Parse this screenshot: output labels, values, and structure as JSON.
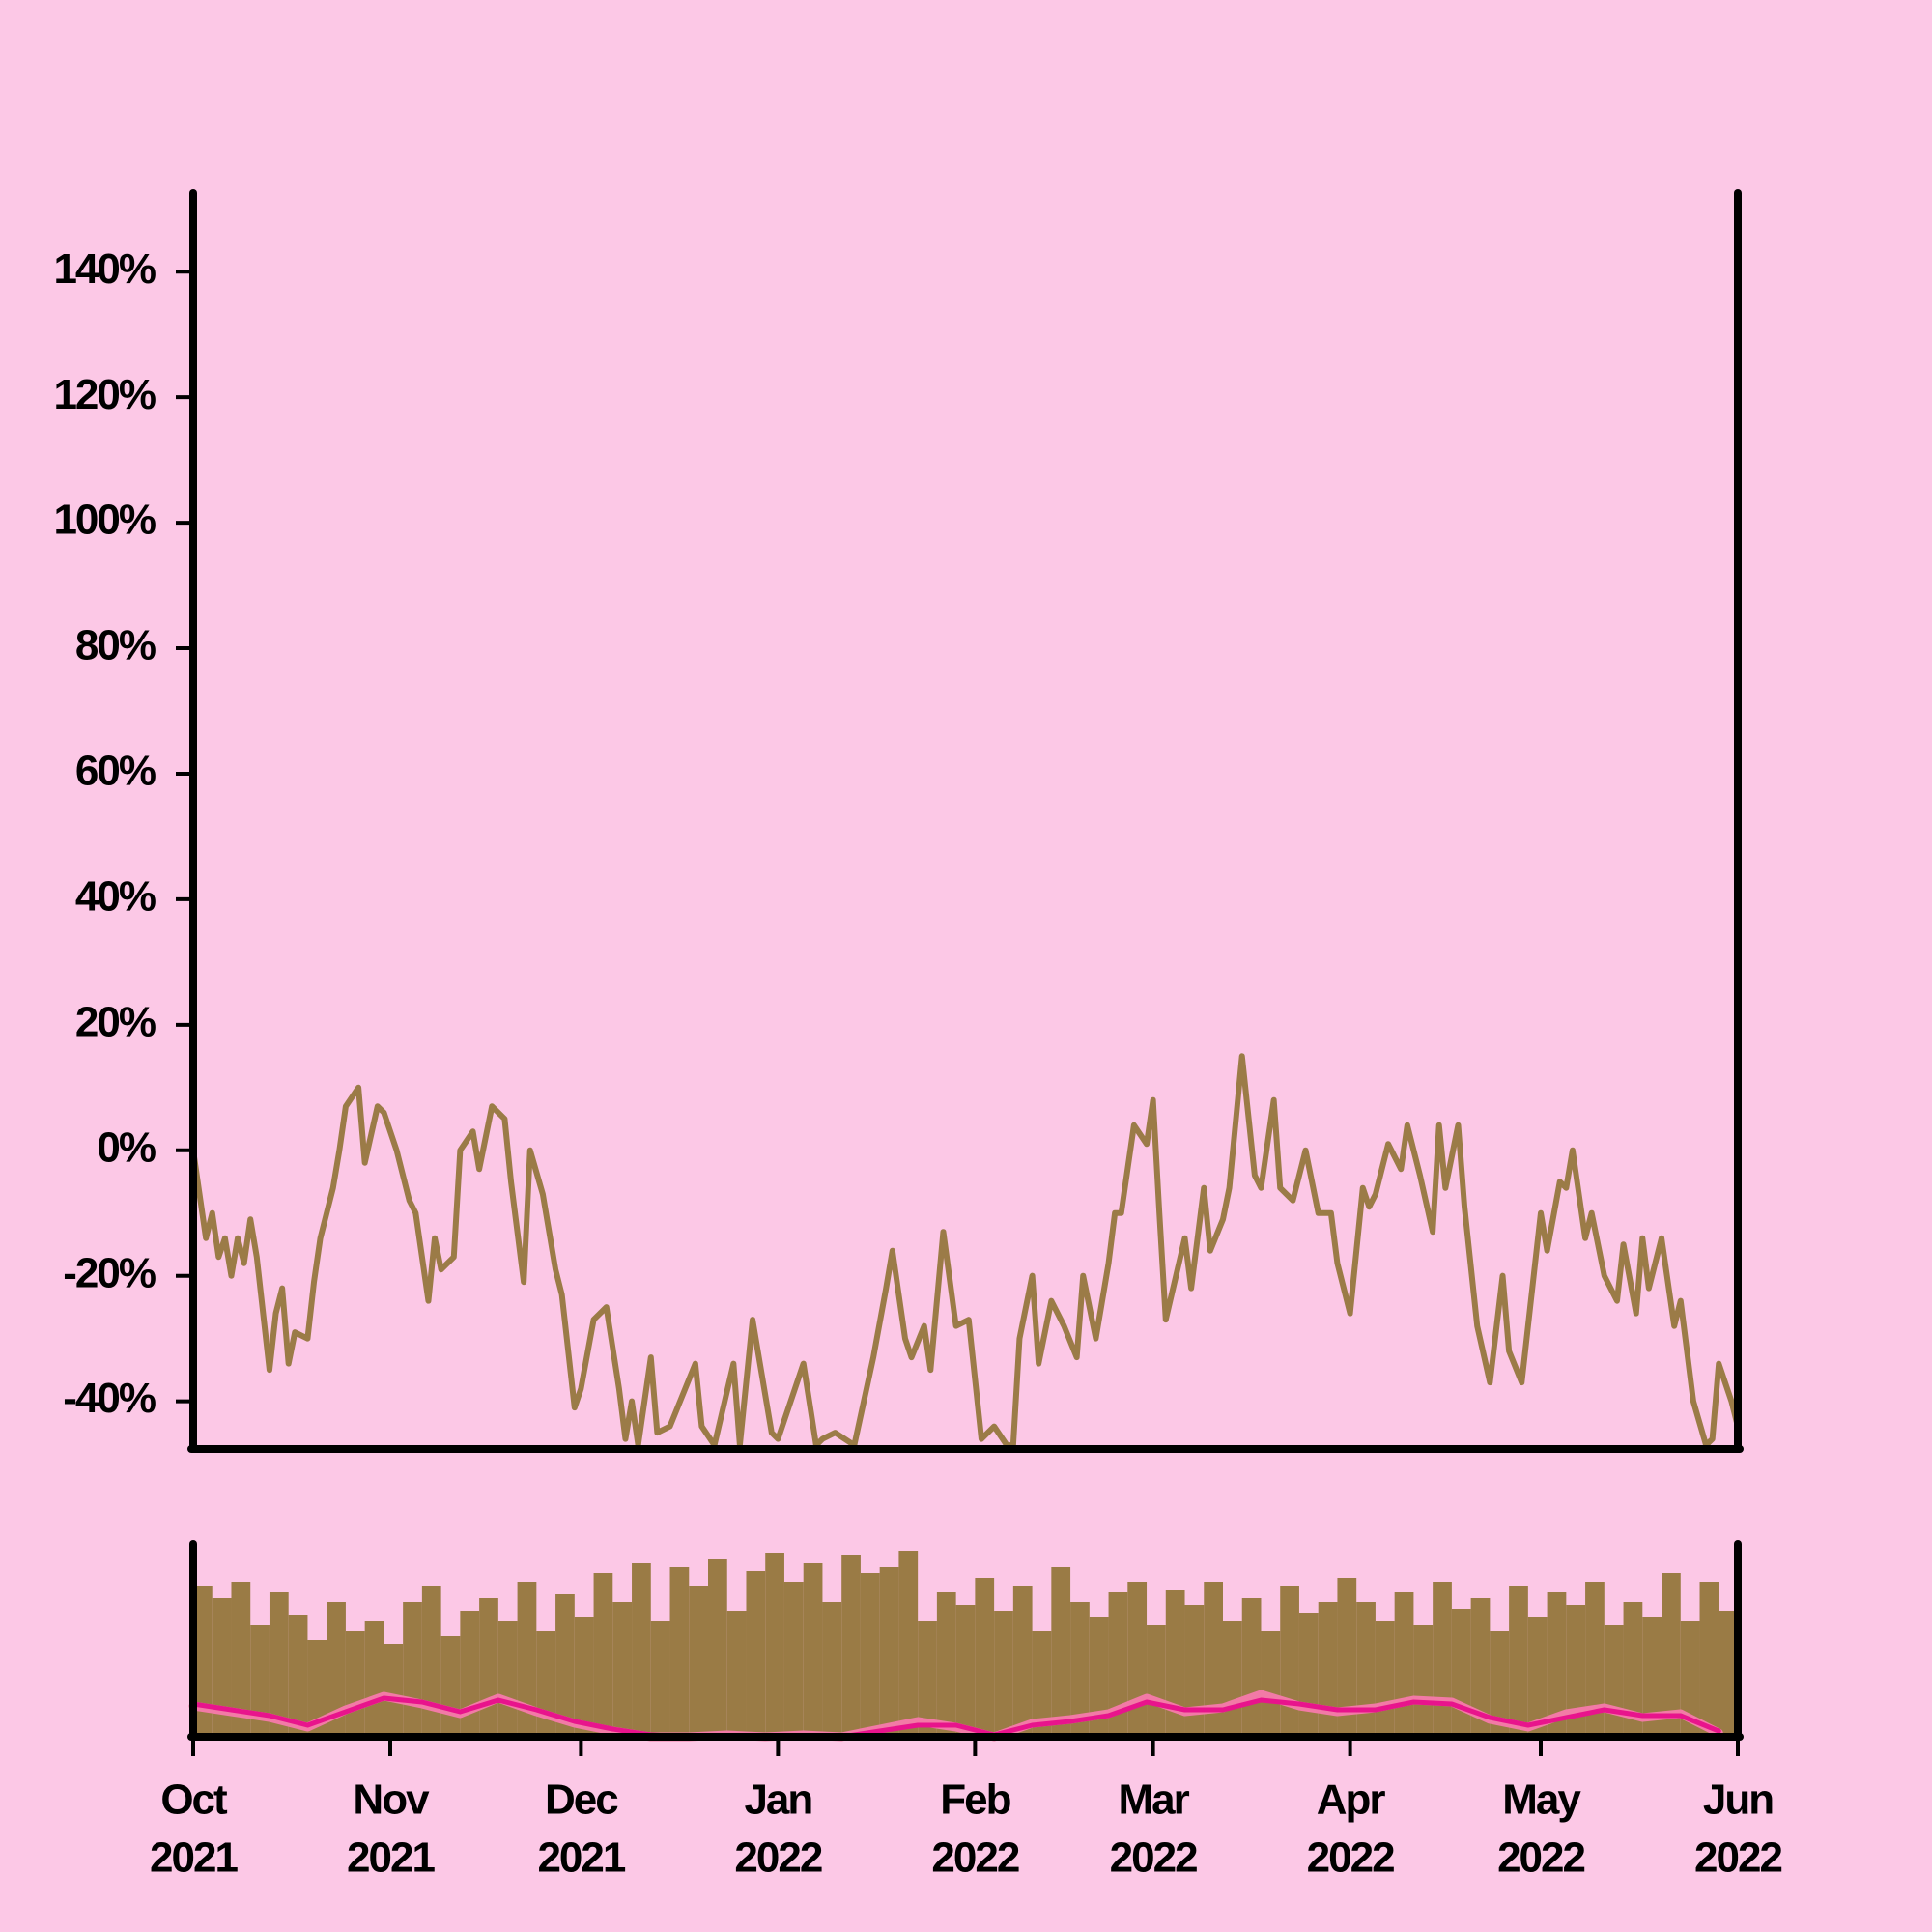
{
  "chart_data": [
    {
      "type": "line",
      "color": "#9b7b47",
      "x": [
        0,
        2,
        3,
        4,
        5,
        6,
        7,
        8,
        9,
        10,
        12,
        13,
        14,
        15,
        16,
        18,
        19,
        20,
        22,
        23,
        24,
        26,
        27,
        29,
        30,
        32,
        34,
        35,
        37,
        38,
        39,
        41,
        42,
        44,
        45,
        47,
        49,
        50,
        52,
        53,
        55,
        57,
        58,
        60,
        61,
        63,
        65,
        67,
        68,
        69,
        70,
        72,
        73,
        75,
        79,
        80,
        82,
        85,
        86,
        88,
        91,
        92,
        94,
        96,
        98,
        99,
        101,
        104,
        107,
        109,
        110,
        112,
        113,
        115,
        116,
        118,
        120,
        122,
        124,
        126,
        128,
        129,
        130,
        132,
        133,
        135,
        137,
        139,
        140,
        142,
        144,
        145,
        146,
        148,
        150,
        151,
        152,
        153,
        156,
        157,
        159,
        160,
        162,
        163,
        165,
        167,
        168,
        170,
        171,
        173,
        175,
        177,
        179,
        180,
        182,
        184,
        185,
        186,
        188,
        190,
        191,
        193,
        195,
        196,
        197,
        199,
        200,
        202,
        204,
        206,
        207,
        209,
        212,
        213,
        215,
        216,
        217,
        219,
        220,
        222,
        224,
        225,
        227,
        228,
        229,
        231,
        233,
        234,
        236,
        238,
        239,
        240,
        242,
        243
      ],
      "values": [
        0,
        -14,
        -10,
        -17,
        -14,
        -20,
        -14,
        -18,
        -11,
        -17,
        -35,
        -26,
        -22,
        -34,
        -29,
        -30,
        -21,
        -14,
        -6,
        0,
        7,
        10,
        -2,
        7,
        6,
        0,
        -8,
        -10,
        -24,
        -14,
        -19,
        -17,
        0,
        3,
        -3,
        7,
        5,
        -5,
        -21,
        0,
        -7,
        -19,
        -23,
        -41,
        -38,
        -27,
        -25,
        -38,
        -46,
        -40,
        -47,
        -33,
        -45,
        -44,
        -34,
        -44,
        -47,
        -34,
        -47,
        -27,
        -45,
        -46,
        -40,
        -34,
        -47,
        -46,
        -45,
        -47,
        -33,
        -22,
        -16,
        -30,
        -33,
        -28,
        -35,
        -13,
        -28,
        -27,
        -46,
        -44,
        -47,
        -47,
        -30,
        -20,
        -34,
        -24,
        -28,
        -33,
        -20,
        -30,
        -18,
        -10,
        -10,
        4,
        1,
        8,
        -10,
        -27,
        -14,
        -22,
        -6,
        -16,
        -11,
        -6,
        15,
        -4,
        -6,
        8,
        -6,
        -8,
        0,
        -10,
        -10,
        -18,
        -26,
        -6,
        -9,
        -7,
        1,
        -3,
        4,
        -4,
        -13,
        4,
        -6,
        4,
        -9,
        -28,
        -37,
        -20,
        -32,
        -37,
        -10,
        -16,
        -5,
        -6,
        0,
        -14,
        -10,
        -20,
        -24,
        -15,
        -26,
        -14,
        -22,
        -14,
        -28,
        -24,
        -40,
        -47,
        -46,
        -34,
        -40,
        -44
      ],
      "xlim": [
        0,
        243
      ],
      "ylim": [
        -47.6,
        152.5
      ],
      "yticks": [
        {
          "value": -40,
          "label": "-40%"
        },
        {
          "value": -20,
          "label": "-20%"
        },
        {
          "value": 0,
          "label": "0%"
        },
        {
          "value": 20,
          "label": "20%"
        },
        {
          "value": 40,
          "label": "40%"
        },
        {
          "value": 60,
          "label": "60%"
        },
        {
          "value": 80,
          "label": "80%"
        },
        {
          "value": 100,
          "label": "100%"
        },
        {
          "value": 120,
          "label": "120%"
        },
        {
          "value": 140,
          "label": "140%"
        }
      ]
    },
    {
      "type": "bar",
      "color": "#9a7b45",
      "x": [
        0,
        3,
        6,
        9,
        12,
        15,
        18,
        21,
        24,
        27,
        30,
        33,
        36,
        39,
        42,
        45,
        48,
        51,
        54,
        57,
        60,
        63,
        66,
        69,
        72,
        75,
        78,
        81,
        84,
        87,
        90,
        93,
        96,
        99,
        102,
        105,
        108,
        111,
        114,
        117,
        120,
        123,
        126,
        129,
        132,
        135,
        138,
        141,
        144,
        147,
        150,
        153,
        156,
        159,
        162,
        165,
        168,
        171,
        174,
        177,
        180,
        183,
        186,
        189,
        192,
        195,
        198,
        201,
        204,
        207,
        210,
        213,
        216,
        219,
        222,
        225,
        228,
        231,
        234,
        237,
        240
      ],
      "values": [
        78,
        72,
        80,
        58,
        75,
        63,
        50,
        70,
        55,
        60,
        48,
        70,
        78,
        52,
        65,
        72,
        60,
        80,
        55,
        74,
        62,
        85,
        70,
        90,
        60,
        88,
        78,
        92,
        65,
        86,
        95,
        80,
        90,
        70,
        94,
        85,
        88,
        96,
        60,
        75,
        68,
        82,
        65,
        78,
        55,
        88,
        70,
        62,
        75,
        80,
        58,
        76,
        68,
        80,
        60,
        72,
        55,
        78,
        64,
        70,
        82,
        70,
        60,
        75,
        58,
        80,
        66,
        72,
        55,
        78,
        62,
        75,
        68,
        80,
        58,
        70,
        62,
        85,
        60,
        80,
        65
      ],
      "xlim": [
        0,
        243
      ],
      "ylim": [
        0,
        100
      ],
      "xticks": [
        {
          "value": 0,
          "label": [
            "Oct",
            "2021"
          ]
        },
        {
          "value": 31,
          "label": [
            "Nov",
            "2021"
          ]
        },
        {
          "value": 61,
          "label": [
            "Dec",
            "2021"
          ]
        },
        {
          "value": 92,
          "label": [
            "Jan",
            "2022"
          ]
        },
        {
          "value": 123,
          "label": [
            "Feb",
            "2022"
          ]
        },
        {
          "value": 151,
          "label": [
            "Mar",
            "2022"
          ]
        },
        {
          "value": 182,
          "label": [
            "Apr",
            "2022"
          ]
        },
        {
          "value": 212,
          "label": [
            "May",
            "2022"
          ]
        },
        {
          "value": 243,
          "label": [
            "Jun",
            "2022"
          ]
        }
      ]
    },
    {
      "type": "line",
      "x": [
        0,
        6,
        12,
        18,
        24,
        30,
        36,
        42,
        48,
        54,
        60,
        66,
        72,
        78,
        84,
        90,
        96,
        102,
        108,
        114,
        120,
        126,
        132,
        138,
        144,
        150,
        156,
        162,
        168,
        174,
        180,
        186,
        192,
        198,
        204,
        210,
        216,
        222,
        228,
        234,
        240
      ],
      "series": [
        {
          "color": "#f27aa6",
          "values": [
            16,
            13,
            10,
            5,
            14,
            21,
            17,
            12,
            20,
            13,
            7,
            3,
            0,
            0,
            1,
            0,
            1,
            0,
            4,
            8,
            5,
            0,
            7,
            9,
            12,
            20,
            13,
            15,
            22,
            16,
            13,
            15,
            19,
            18,
            9,
            5,
            12,
            15,
            10,
            12,
            2
          ]
        },
        {
          "color": "#e8148c",
          "values": [
            17,
            14,
            11,
            6,
            13,
            20,
            18,
            13,
            19,
            14,
            8,
            4,
            1,
            0,
            0,
            0,
            0,
            0,
            3,
            6,
            6,
            1,
            6,
            8,
            11,
            18,
            14,
            14,
            19,
            17,
            14,
            14,
            18,
            17,
            10,
            6,
            10,
            14,
            11,
            11,
            3
          ]
        }
      ],
      "xlim": [
        0,
        243
      ],
      "ylim": [
        0,
        100
      ]
    }
  ]
}
